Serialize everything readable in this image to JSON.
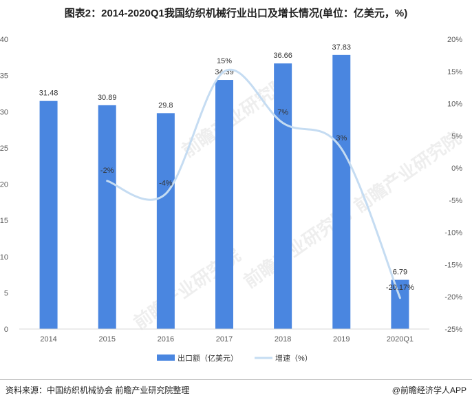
{
  "title": "图表2：2014-2020Q1我国纺织机械行业出口及增长情况(单位：亿美元，%)",
  "source_text": "资料来源：中国纺织机械协会 前瞻产业研究院整理",
  "brand_text": "@前瞻经济学人APP",
  "watermark_text": "前瞻产业研究院",
  "colors": {
    "bar": "#4a86e0",
    "line": "#c5dcf2",
    "axis": "#d9d9d9",
    "text": "#595959"
  },
  "chart_data": {
    "type": "bar",
    "categories": [
      "2014",
      "2015",
      "2016",
      "2017",
      "2018",
      "2019",
      "2020Q1"
    ],
    "series": [
      {
        "name": "出口额（亿美元）",
        "type": "bar",
        "axis": "left",
        "values": [
          31.48,
          30.89,
          29.8,
          34.39,
          36.66,
          37.83,
          6.79
        ],
        "labels": [
          "31.48",
          "30.89",
          "29.8",
          "34.39",
          "36.66",
          "37.83",
          "6.79"
        ]
      },
      {
        "name": "增速（%）",
        "type": "line",
        "axis": "right",
        "smooth": true,
        "values": [
          null,
          -2,
          -4,
          15,
          7,
          3,
          -20.17
        ],
        "labels": [
          "",
          "-2%",
          "-4%",
          "15%",
          "7%",
          "3%",
          "-20.17%"
        ]
      }
    ],
    "y_left": {
      "min": 0,
      "max": 40,
      "ticks": [
        0,
        5,
        10,
        15,
        20,
        25,
        30,
        35,
        40
      ],
      "tick_labels": [
        "0",
        "5",
        "10",
        "15",
        "20",
        "25",
        "30",
        "35",
        "40"
      ]
    },
    "y_right": {
      "min": -25,
      "max": 20,
      "ticks": [
        20,
        15,
        10,
        5,
        0,
        -5,
        -10,
        -15,
        -20,
        -25
      ],
      "tick_labels": [
        "20%",
        "15%",
        "10%",
        "5%",
        "0%",
        "-5%",
        "-10%",
        "-15%",
        "-20%",
        "-25%"
      ]
    },
    "grid": false,
    "legend_position": "bottom"
  }
}
